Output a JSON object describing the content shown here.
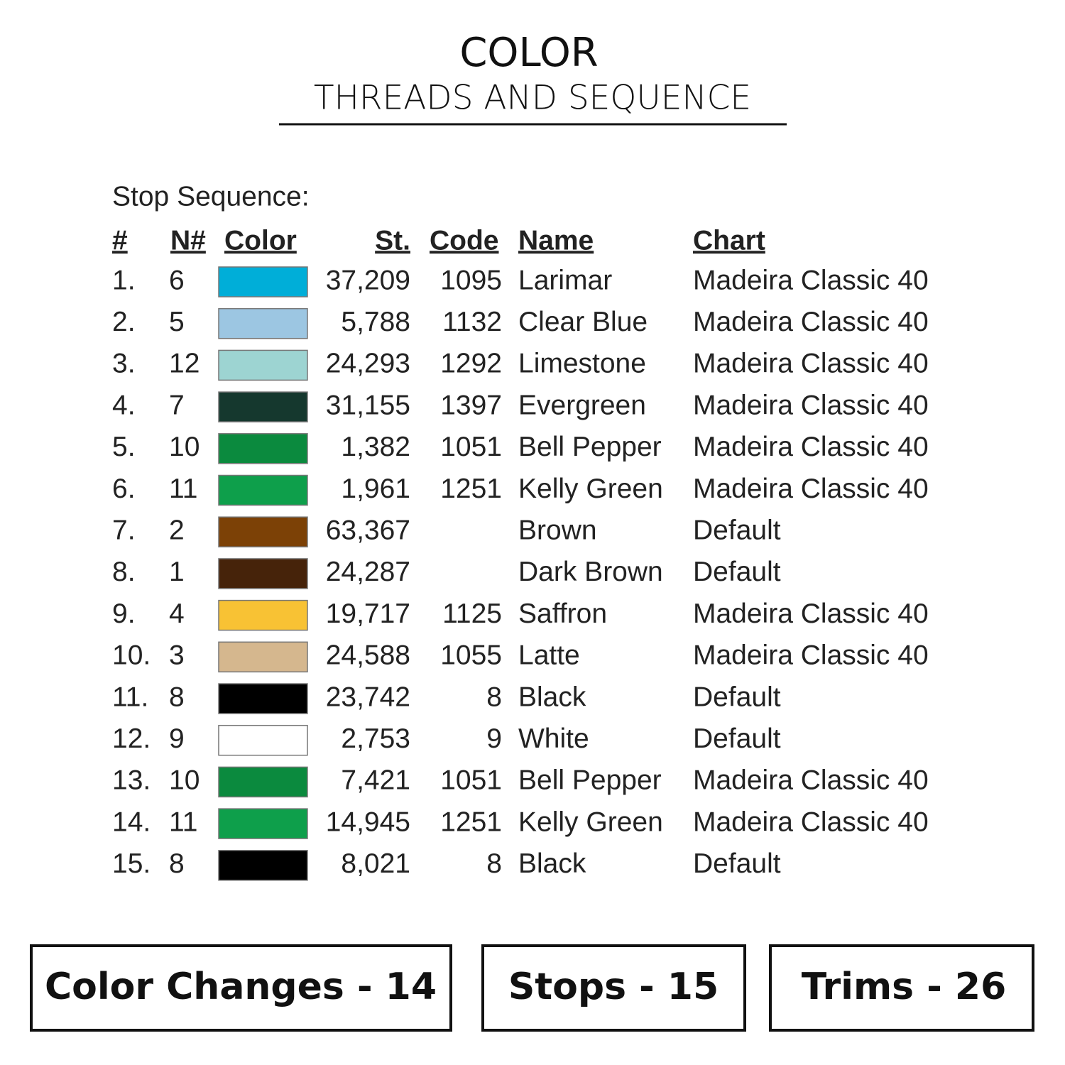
{
  "header": {
    "title": "COLOR",
    "subtitle": "THREADS AND SEQUENCE"
  },
  "table": {
    "caption": "Stop Sequence:",
    "columns": {
      "index": "#",
      "n": "N#",
      "color": "Color",
      "stitches": "St.",
      "code": "Code",
      "name": "Name",
      "chart": "Chart"
    },
    "rows": [
      {
        "index": "1.",
        "n": "6",
        "color": "#00aed8",
        "stitches": "37,209",
        "code": "1095",
        "name": "Larimar",
        "chart": "Madeira Classic 40"
      },
      {
        "index": "2.",
        "n": "5",
        "color": "#9cc6e2",
        "stitches": "5,788",
        "code": "1132",
        "name": "Clear Blue",
        "chart": "Madeira Classic 40"
      },
      {
        "index": "3.",
        "n": "12",
        "color": "#9dd4d2",
        "stitches": "24,293",
        "code": "1292",
        "name": "Limestone",
        "chart": "Madeira Classic 40"
      },
      {
        "index": "4.",
        "n": "7",
        "color": "#15382e",
        "stitches": "31,155",
        "code": "1397",
        "name": "Evergreen",
        "chart": "Madeira Classic 40"
      },
      {
        "index": "5.",
        "n": "10",
        "color": "#0b8a3e",
        "stitches": "1,382",
        "code": "1051",
        "name": "Bell Pepper",
        "chart": "Madeira Classic 40"
      },
      {
        "index": "6.",
        "n": "11",
        "color": "#0e9f4b",
        "stitches": "1,961",
        "code": "1251",
        "name": "Kelly Green",
        "chart": "Madeira Classic 40"
      },
      {
        "index": "7.",
        "n": "2",
        "color": "#7c4106",
        "stitches": "63,367",
        "name": "Brown",
        "chart": "Default"
      },
      {
        "index": "8.",
        "n": "1",
        "color": "#46230a",
        "stitches": "24,287",
        "name": "Dark Brown",
        "chart": "Default"
      },
      {
        "index": "9.",
        "n": "4",
        "color": "#f8c234",
        "stitches": "19,717",
        "code": "1125",
        "name": "Saffron",
        "chart": "Madeira Classic 40"
      },
      {
        "index": "10.",
        "n": "3",
        "color": "#d5b78e",
        "stitches": "24,588",
        "code": "1055",
        "name": "Latte",
        "chart": "Madeira Classic 40"
      },
      {
        "index": "11.",
        "n": "8",
        "color": "#000000",
        "stitches": "23,742",
        "code": "8",
        "name": "Black",
        "chart": "Default"
      },
      {
        "index": "12.",
        "n": "9",
        "color": "#ffffff",
        "stitches": "2,753",
        "code": "9",
        "name": "White",
        "chart": "Default"
      },
      {
        "index": "13.",
        "n": "10",
        "color": "#0b8a3e",
        "stitches": "7,421",
        "code": "1051",
        "name": "Bell Pepper",
        "chart": "Madeira Classic 40"
      },
      {
        "index": "14.",
        "n": "11",
        "color": "#0e9f4b",
        "stitches": "14,945",
        "code": "1251",
        "name": "Kelly Green",
        "chart": "Madeira Classic 40"
      },
      {
        "index": "15.",
        "n": "8",
        "color": "#000000",
        "stitches": "8,021",
        "code": "8",
        "name": "Black",
        "chart": "Default"
      }
    ]
  },
  "summary": [
    "Color Changes - 14",
    "Stops - 15",
    "Trims - 26"
  ]
}
